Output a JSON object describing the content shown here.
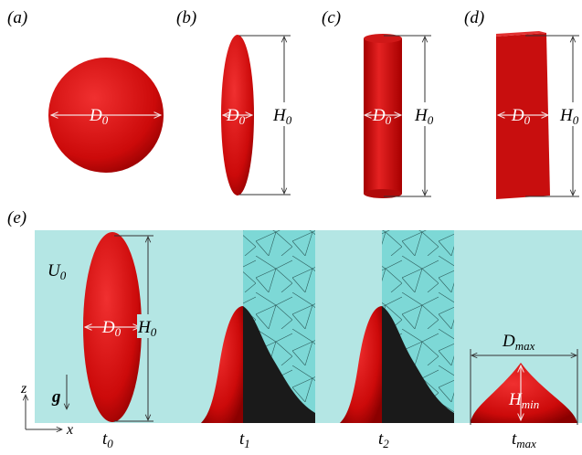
{
  "panel_labels": [
    "(a)",
    "(b)",
    "(c)",
    "(d)",
    "(e)"
  ],
  "a": {
    "width": {
      "base": "D",
      "sub": "0"
    }
  },
  "b": {
    "width": {
      "base": "D",
      "sub": "0"
    },
    "height": {
      "base": "H",
      "sub": "0"
    }
  },
  "c": {
    "width": {
      "base": "D",
      "sub": "0"
    },
    "height": {
      "base": "H",
      "sub": "0"
    }
  },
  "d": {
    "width": {
      "base": "D",
      "sub": "0"
    },
    "height": {
      "base": "H",
      "sub": "0"
    }
  },
  "e": {
    "velocity": {
      "base": "U",
      "sub": "0"
    },
    "width": {
      "base": "D",
      "sub": "0"
    },
    "height": {
      "base": "H",
      "sub": "0"
    },
    "gravity": "g",
    "z_axis": "z",
    "x_axis": "x",
    "times": [
      {
        "base": "t",
        "sub": "0"
      },
      {
        "base": "t",
        "sub": "1"
      },
      {
        "base": "t",
        "sub": "2"
      },
      {
        "base": "t",
        "sub": "max"
      }
    ],
    "max_width": {
      "base": "D",
      "sub": "max"
    },
    "min_height": {
      "base": "H",
      "sub": "min"
    }
  }
}
